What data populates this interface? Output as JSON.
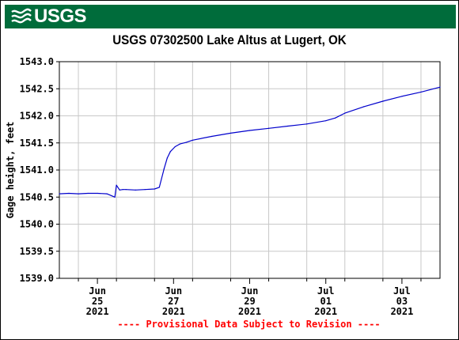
{
  "header": {
    "logo_text": "USGS",
    "logo_icon": "usgs-wave-icon",
    "banner_color": "#006c3b"
  },
  "chart_data": {
    "type": "line",
    "title": "USGS 07302500 Lake Altus at Lugert, OK",
    "ylabel": "Gage height, feet",
    "xlabel": "",
    "ylim": [
      1539.0,
      1543.0
    ],
    "yticks": [
      "1539.0",
      "1539.5",
      "1540.0",
      "1540.5",
      "1541.0",
      "1541.5",
      "1542.0",
      "1542.5",
      "1543.0"
    ],
    "xlim": [
      "2021-06-24 12:00",
      "2021-07-04 12:00"
    ],
    "xticks": [
      {
        "date": "2021-06-25 12:00",
        "label": [
          "Jun",
          "25",
          "2021"
        ]
      },
      {
        "date": "2021-06-27 12:00",
        "label": [
          "Jun",
          "27",
          "2021"
        ]
      },
      {
        "date": "2021-06-29 12:00",
        "label": [
          "Jun",
          "29",
          "2021"
        ]
      },
      {
        "date": "2021-07-01 12:00",
        "label": [
          "Jul",
          "01",
          "2021"
        ]
      },
      {
        "date": "2021-07-03 12:00",
        "label": [
          "Jul",
          "03",
          "2021"
        ]
      }
    ],
    "grid": true,
    "series": [
      {
        "name": "",
        "color": "#0000cc",
        "x": [
          "2021-06-24 12:00",
          "2021-06-24 18:00",
          "2021-06-25 00:00",
          "2021-06-25 06:00",
          "2021-06-25 12:00",
          "2021-06-25 18:00",
          "2021-06-25 23:00",
          "2021-06-26 00:00",
          "2021-06-26 02:00",
          "2021-06-26 04:00",
          "2021-06-26 06:00",
          "2021-06-26 12:00",
          "2021-06-26 18:00",
          "2021-06-27 00:00",
          "2021-06-27 03:00",
          "2021-06-27 06:00",
          "2021-06-27 08:00",
          "2021-06-27 10:00",
          "2021-06-27 13:00",
          "2021-06-27 16:00",
          "2021-06-27 20:00",
          "2021-06-28 00:00",
          "2021-06-28 12:00",
          "2021-06-29 00:00",
          "2021-06-29 12:00",
          "2021-06-30 00:00",
          "2021-06-30 12:00",
          "2021-07-01 00:00",
          "2021-07-01 12:00",
          "2021-07-01 18:00",
          "2021-07-02 00:00",
          "2021-07-02 12:00",
          "2021-07-03 00:00",
          "2021-07-03 12:00",
          "2021-07-04 00:00",
          "2021-07-04 12:00"
        ],
        "y": [
          1540.56,
          1540.57,
          1540.56,
          1540.57,
          1540.57,
          1540.56,
          1540.5,
          1540.72,
          1540.63,
          1540.64,
          1540.64,
          1540.63,
          1540.64,
          1540.65,
          1540.68,
          1541.02,
          1541.22,
          1541.34,
          1541.43,
          1541.48,
          1541.51,
          1541.55,
          1541.62,
          1541.68,
          1541.73,
          1541.77,
          1541.81,
          1541.85,
          1541.91,
          1541.96,
          1542.05,
          1542.17,
          1542.27,
          1542.36,
          1542.44,
          1542.53
        ]
      }
    ]
  },
  "footer": {
    "provisional_text": "---- Provisional Data Subject to Revision ----"
  }
}
